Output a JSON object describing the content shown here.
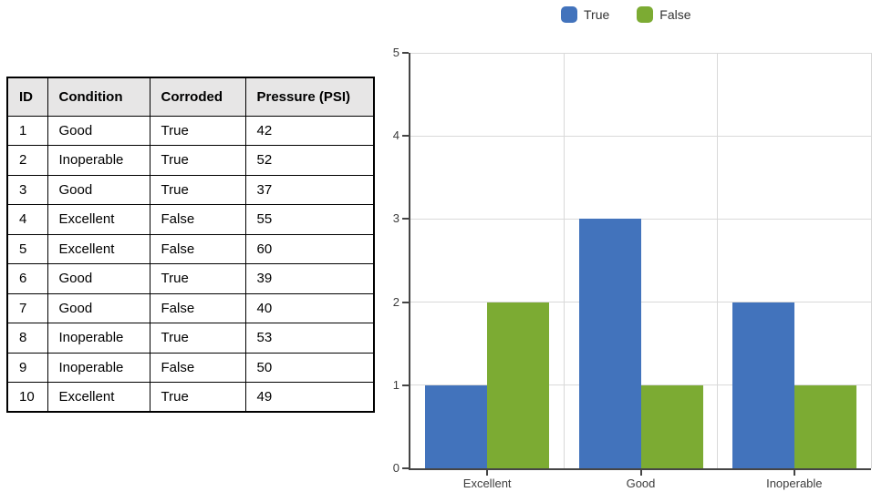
{
  "table": {
    "headers": [
      "ID",
      "Condition",
      "Corroded",
      "Pressure (PSI)"
    ],
    "rows": [
      [
        "1",
        "Good",
        "True",
        "42"
      ],
      [
        "2",
        "Inoperable",
        "True",
        "52"
      ],
      [
        "3",
        "Good",
        "True",
        "37"
      ],
      [
        "4",
        "Excellent",
        "False",
        "55"
      ],
      [
        "5",
        "Excellent",
        "False",
        "60"
      ],
      [
        "6",
        "Good",
        "True",
        "39"
      ],
      [
        "7",
        "Good",
        "False",
        "40"
      ],
      [
        "8",
        "Inoperable",
        "True",
        "53"
      ],
      [
        "9",
        "Inoperable",
        "False",
        "50"
      ],
      [
        "10",
        "Excellent",
        "True",
        "49"
      ]
    ]
  },
  "chart_data": {
    "type": "bar",
    "title": "",
    "xlabel": "",
    "ylabel": "",
    "categories": [
      "Excellent",
      "Good",
      "Inoperable"
    ],
    "series": [
      {
        "name": "True",
        "color": "#4273BC",
        "values": [
          1,
          3,
          2
        ]
      },
      {
        "name": "False",
        "color": "#7CAB33",
        "values": [
          2,
          1,
          1
        ]
      }
    ],
    "ylim": [
      0,
      5
    ],
    "yticks": [
      0,
      1,
      2,
      3,
      4,
      5
    ],
    "grid": true,
    "legend_position": "top"
  },
  "colors": {
    "grid": "#D9D9D9",
    "axis": "#454545",
    "table_border": "#000000",
    "table_header_bg": "#E7E6E6"
  }
}
